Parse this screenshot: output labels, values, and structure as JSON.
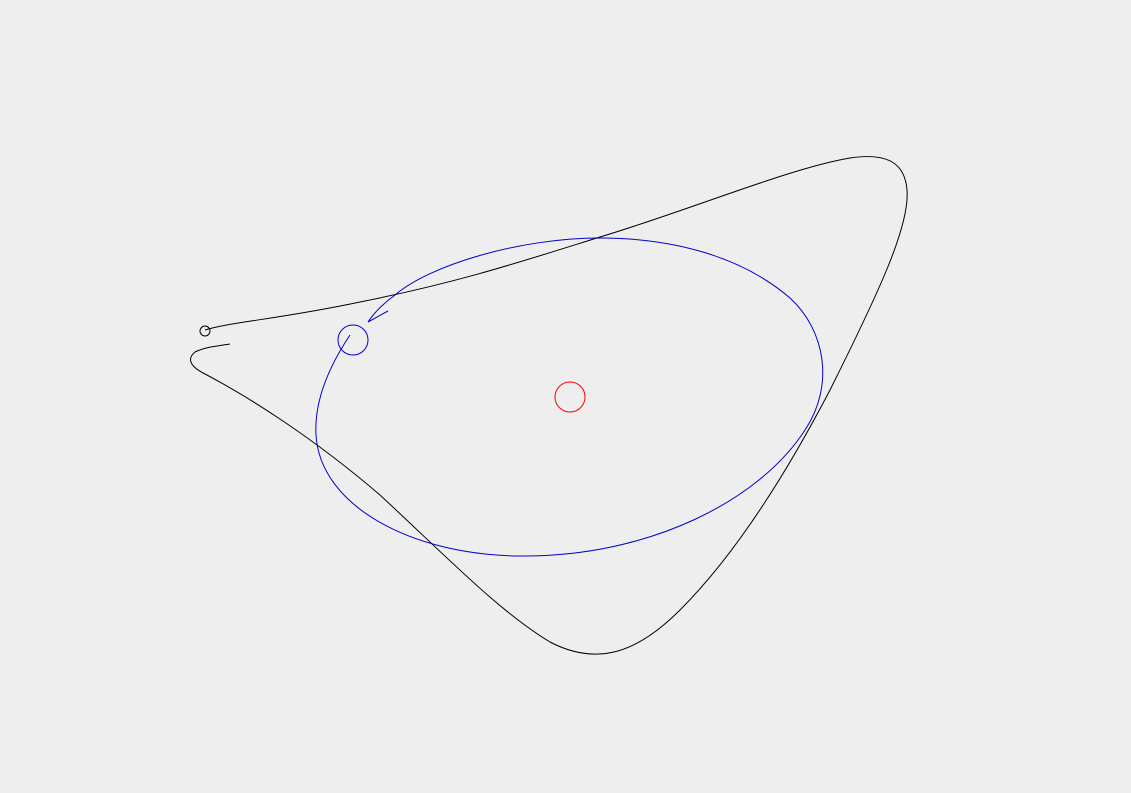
{
  "scene": {
    "background_color": "#eeeeee",
    "bodies": [
      {
        "name": "central-star",
        "color": "#ff0000"
      },
      {
        "name": "planet",
        "color": "#0000cc"
      },
      {
        "name": "probe",
        "color": "#000000"
      }
    ],
    "orbits": [
      {
        "name": "planet-orbit",
        "color": "#0000cc"
      },
      {
        "name": "probe-trajectory",
        "color": "#000000"
      }
    ]
  }
}
